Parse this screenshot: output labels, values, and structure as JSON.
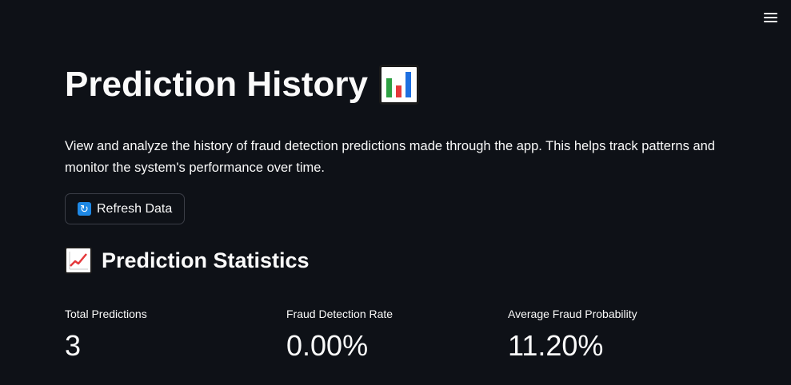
{
  "header": {
    "menu_icon": "hamburger-menu-icon"
  },
  "page": {
    "title": "Prediction History",
    "title_icon": "bar-chart-icon",
    "description": "View and analyze the history of fraud detection predictions made through the app. This helps track patterns and monitor the system's performance over time."
  },
  "refresh_button": {
    "icon": "refresh-icon",
    "label": "Refresh Data"
  },
  "statistics": {
    "title": "Prediction Statistics",
    "title_icon": "chart-increasing-icon",
    "metrics": [
      {
        "label": "Total Predictions",
        "value": "3"
      },
      {
        "label": "Fraud Detection Rate",
        "value": "0.00%"
      },
      {
        "label": "Average Fraud Probability",
        "value": "11.20%"
      }
    ]
  },
  "colors": {
    "background": "#0e1117",
    "text": "#fafafa",
    "button_border": "#3b3e47",
    "refresh_icon_bg": "#1e88e5"
  }
}
